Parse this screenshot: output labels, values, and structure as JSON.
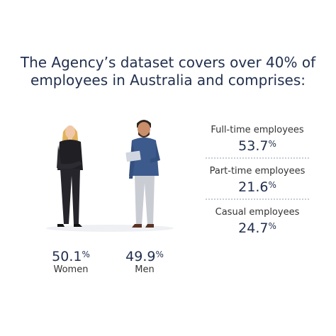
{
  "title_lines": [
    "The Agency’s dataset covers over 40% of",
    "employees in Australia and comprises:"
  ],
  "gender": [
    {
      "value": "50.1",
      "unit": "%",
      "label": "Women"
    },
    {
      "value": "49.9",
      "unit": "%",
      "label": "Men"
    }
  ],
  "employment": [
    {
      "label": "Full-time employees",
      "value": "53.7",
      "unit": "%"
    },
    {
      "label": "Part-time employees",
      "value": "21.6",
      "unit": "%"
    },
    {
      "label": "Casual employees",
      "value": "24.7",
      "unit": "%"
    }
  ]
}
